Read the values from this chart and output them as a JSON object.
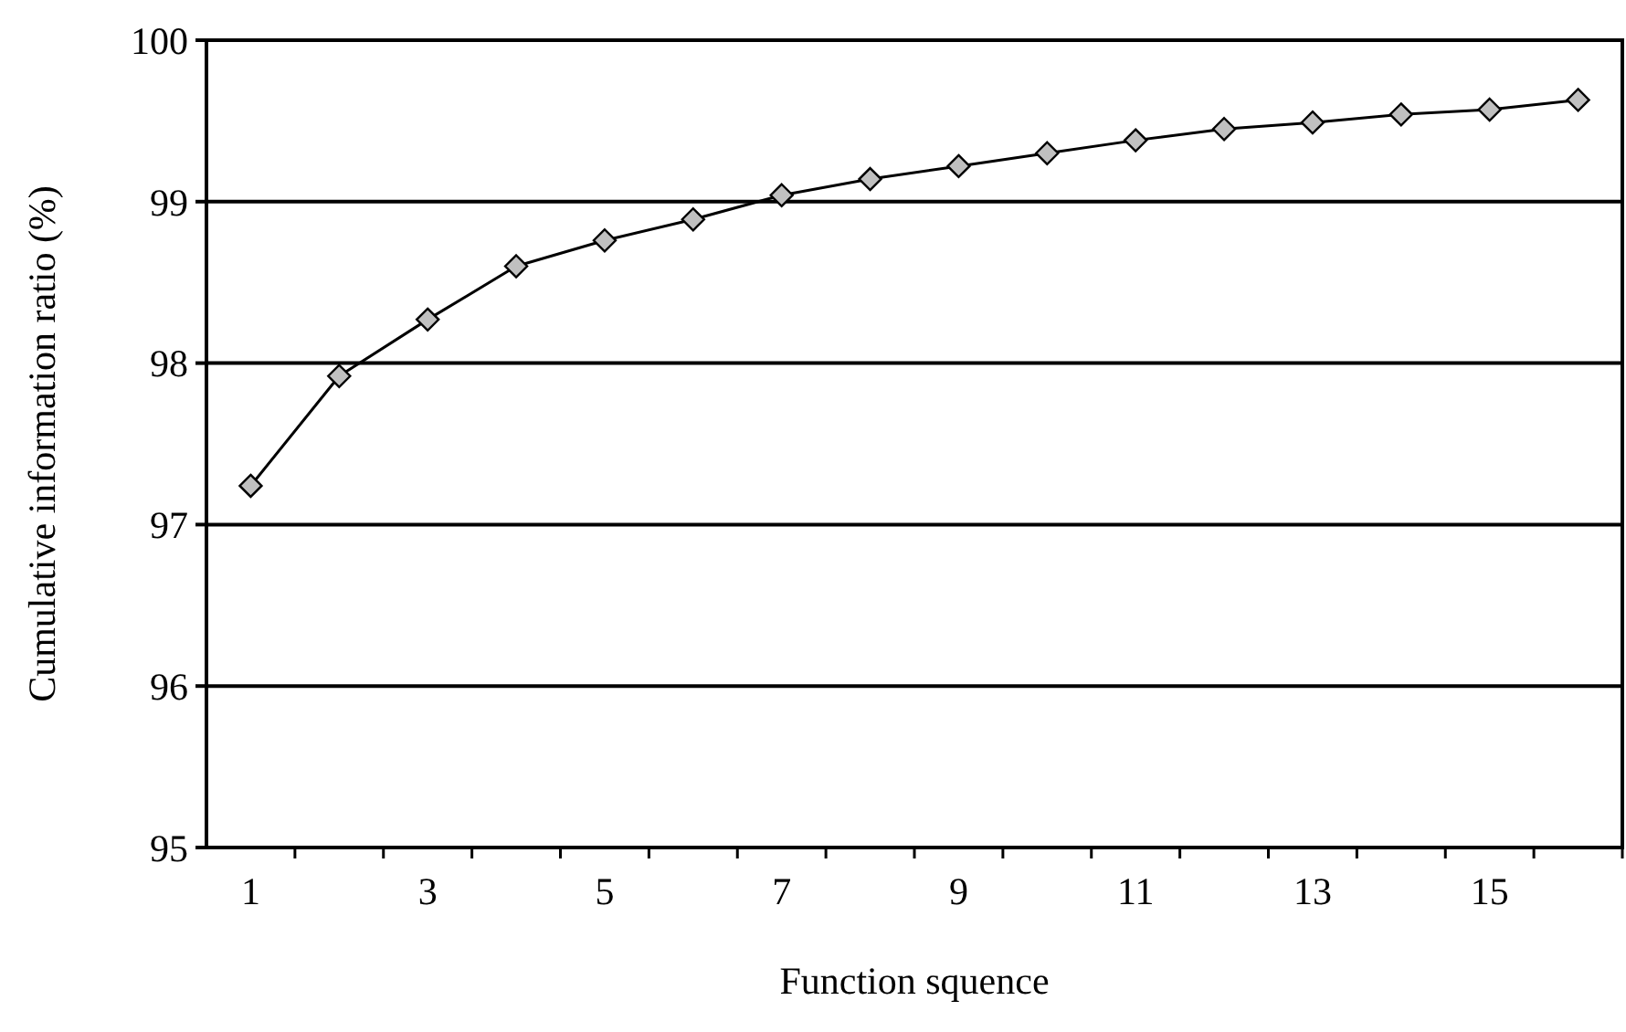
{
  "chart_data": {
    "type": "line",
    "xlabel": "Function squence",
    "ylabel": "Cumulative information ratio (%)",
    "x": [
      1,
      2,
      3,
      4,
      5,
      6,
      7,
      8,
      9,
      10,
      11,
      12,
      13,
      14,
      15,
      16
    ],
    "series": [
      {
        "color": "#000000",
        "values": [
          97.24,
          97.92,
          98.27,
          98.6,
          98.76,
          98.89,
          99.04,
          99.14,
          99.22,
          99.3,
          99.38,
          99.45,
          99.49,
          99.54,
          99.57,
          99.63
        ]
      }
    ],
    "xlim": [
      0.5,
      16.5
    ],
    "xticks": [
      1,
      {
        "value": 1.5,
        "label": null
      },
      {
        "value": 2.5,
        "label": null
      },
      3,
      {
        "value": 3.5,
        "label": null
      },
      {
        "value": 4.5,
        "label": null
      },
      5,
      {
        "value": 5.5,
        "label": null
      },
      {
        "value": 6.5,
        "label": null
      },
      7,
      {
        "value": 7.5,
        "label": null
      },
      {
        "value": 8.5,
        "label": null
      },
      9,
      {
        "value": 9.5,
        "label": null
      },
      {
        "value": 10.5,
        "label": null
      },
      11,
      {
        "value": 11.5,
        "label": null
      },
      {
        "value": 12.5,
        "label": null
      },
      13,
      {
        "value": 13.5,
        "label": null
      },
      {
        "value": 14.5,
        "label": null
      },
      15,
      {
        "value": 15.5,
        "label": null
      },
      {
        "value": 16.5,
        "label": null
      }
    ],
    "ylim": [
      95,
      100
    ],
    "yticks": [
      95,
      96,
      97,
      98,
      99,
      100
    ],
    "grid": "y",
    "marker": "diamond",
    "line_style": "solid"
  }
}
